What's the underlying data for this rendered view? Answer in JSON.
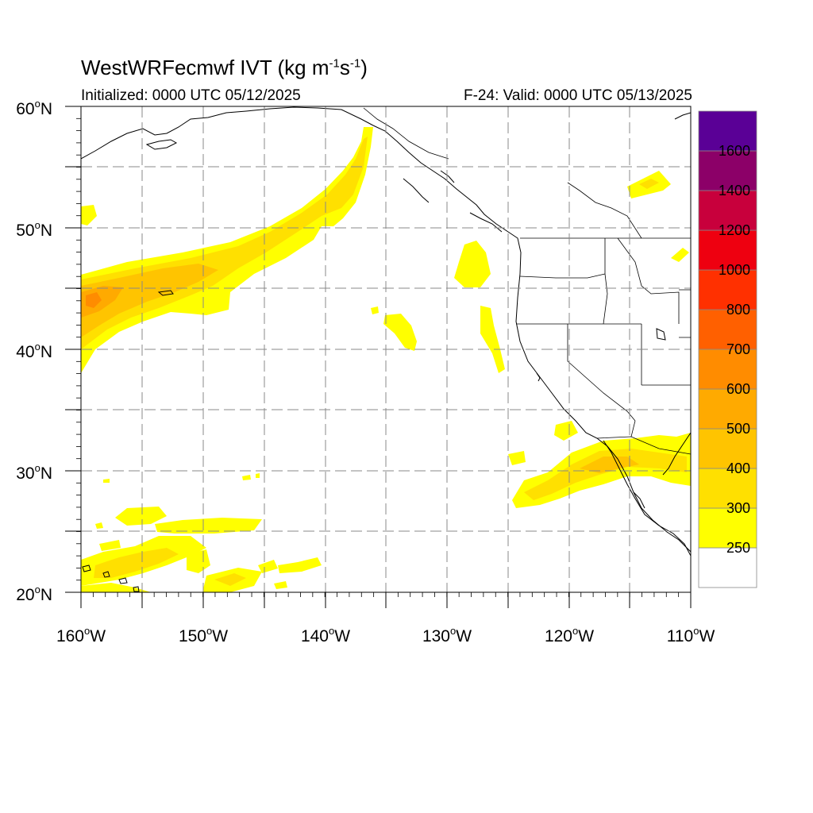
{
  "header": {
    "title_prefix": "WestWRFecmwf IVT (kg m",
    "title_exp1": "-1",
    "title_mid": "s",
    "title_exp2": "-1",
    "title_suffix": ")",
    "initialized": "Initialized: 0000 UTC 05/12/2025",
    "valid": "F-24: Valid: 0000 UTC 05/13/2025"
  },
  "map": {
    "projection": "lat-lon",
    "lon_range": [
      -160,
      -110
    ],
    "lat_range": [
      20,
      60
    ],
    "grid": true,
    "x_tick_labels": [
      "160",
      "150",
      "140",
      "130",
      "120",
      "110"
    ],
    "x_tick_suffix": "W",
    "y_tick_labels": [
      "20",
      "30",
      "40",
      "50",
      "60"
    ],
    "y_tick_suffix": "N",
    "degree_symbol": "o"
  },
  "colorbar": {
    "labels": [
      "250",
      "300",
      "400",
      "500",
      "600",
      "700",
      "800",
      "1000",
      "1200",
      "1400",
      "1600"
    ],
    "colors": [
      "#ffffff",
      "#ffff00",
      "#ffe000",
      "#ffc400",
      "#ffaa00",
      "#ff8c00",
      "#ff6000",
      "#ff3000",
      "#ee0010",
      "#c8003c",
      "#8c0068",
      "#5a0096"
    ]
  }
}
